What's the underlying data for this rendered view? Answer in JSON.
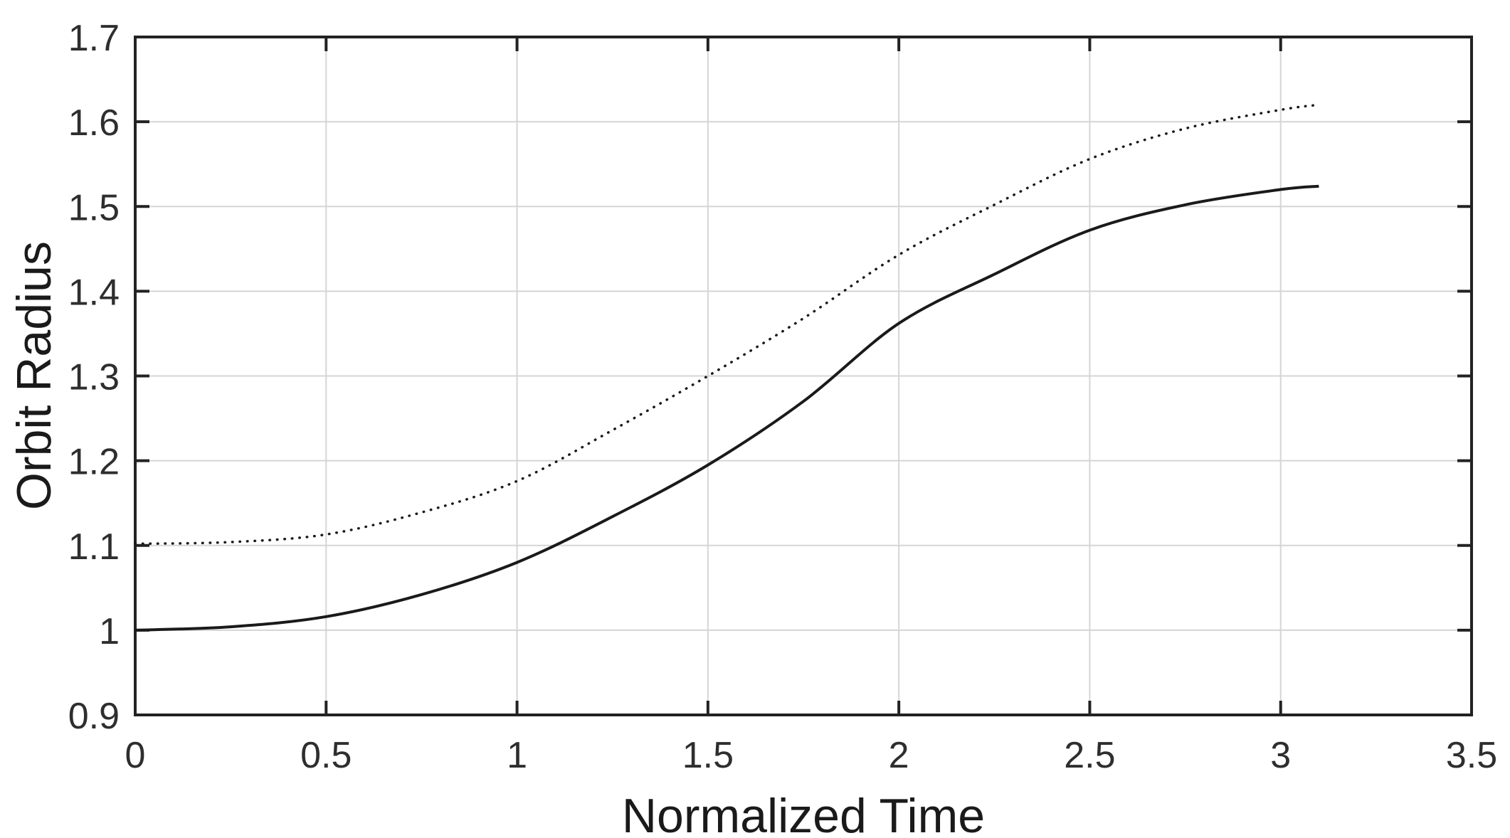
{
  "figure": {
    "background": "#ffffff",
    "axis_color": "#222222",
    "grid_color": "#d5d5d5",
    "tick_label_color": "#2e2e2e",
    "label_color": "#1a1a1a",
    "curve_color": "#1a1a1a"
  },
  "chart_data": {
    "type": "line",
    "title": "",
    "xlabel": "Normalized Time",
    "ylabel": "Orbit Radius",
    "xlim": [
      0,
      3.5
    ],
    "ylim": [
      0.9,
      1.7
    ],
    "grid": true,
    "legend": "none",
    "box": true,
    "tick_direction": "in",
    "xticks": {
      "values": [
        0,
        0.5,
        1,
        1.5,
        2,
        2.5,
        3,
        3.5
      ],
      "labels": [
        "0",
        "0.5",
        "1",
        "1.5",
        "2",
        "2.5",
        "3",
        "3.5"
      ]
    },
    "yticks": {
      "values": [
        0.9,
        1.0,
        1.1,
        1.2,
        1.3,
        1.4,
        1.5,
        1.6,
        1.7
      ],
      "labels": [
        "0.9",
        "1",
        "1.1",
        "1.2",
        "1.3",
        "1.4",
        "1.5",
        "1.6",
        "1.7"
      ]
    },
    "x": [
      0,
      0.25,
      0.5,
      0.75,
      1.0,
      1.25,
      1.5,
      1.75,
      2.0,
      2.25,
      2.5,
      2.75,
      3.0,
      3.1
    ],
    "series": [
      {
        "name": "solid-curve",
        "line_style": "solid",
        "values": [
          1.0,
          1.004,
          1.016,
          1.042,
          1.08,
          1.134,
          1.195,
          1.27,
          1.362,
          1.42,
          1.472,
          1.502,
          1.52,
          1.524
        ]
      },
      {
        "name": "dotted-curve",
        "line_style": "dotted",
        "values": [
          1.102,
          1.104,
          1.113,
          1.139,
          1.176,
          1.236,
          1.3,
          1.368,
          1.443,
          1.502,
          1.556,
          1.592,
          1.614,
          1.62
        ]
      }
    ]
  }
}
